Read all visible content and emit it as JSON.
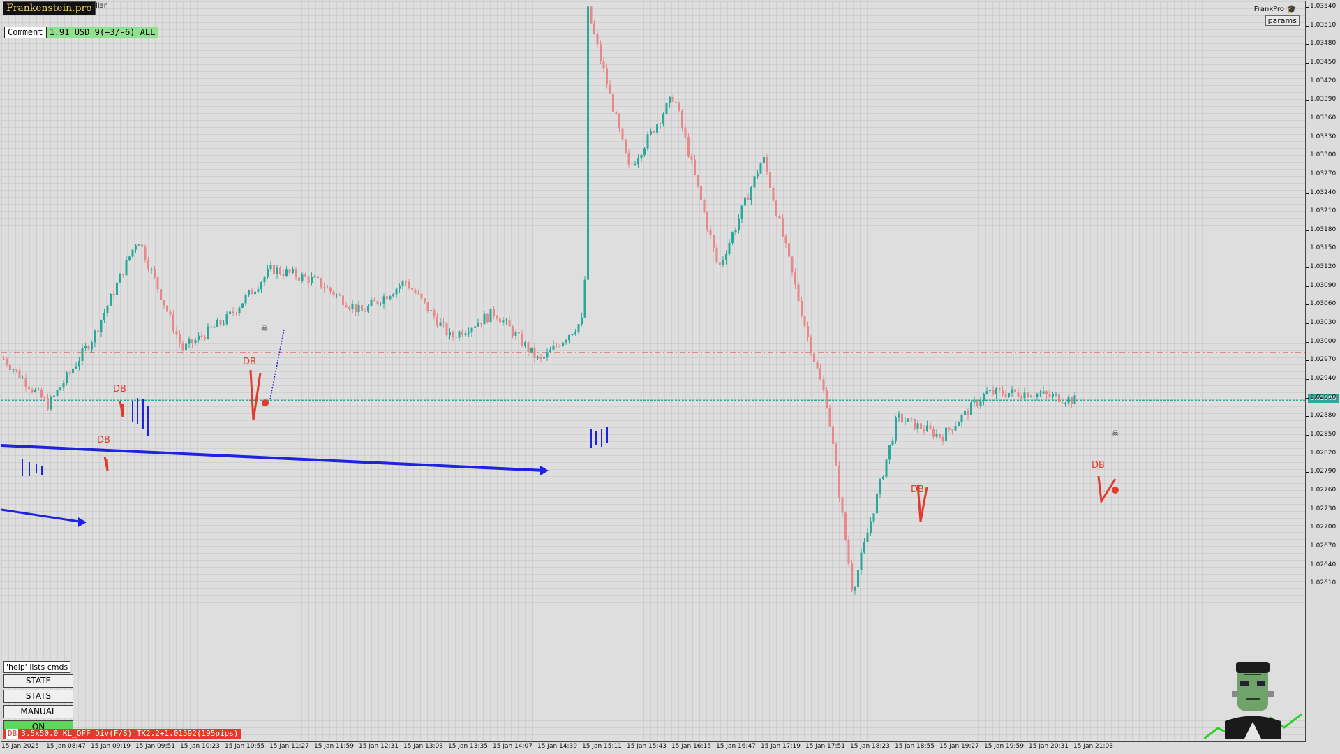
{
  "header": {
    "brand": "Frankenstein.pro",
    "symbol_fragment": "ollar",
    "comment_label": "Comment",
    "comment_value": "1.91 USD 9(+3/-6) ALL",
    "account_name": "FrankPro",
    "params_label": "params"
  },
  "icons": {
    "account": "graduation-cap-icon",
    "mascot": "frankenstein-head-icon",
    "skull": "skull-crossbones-icon"
  },
  "command_panel": {
    "help_label": "'help' lists cmds",
    "buttons": [
      "STATE",
      "STATS",
      "MANUAL",
      "ON"
    ]
  },
  "status_bar": {
    "tag": "DB",
    "text": "3.5x50.0 KL_OFF Div(F/S) TK2.2+1.01592(195pips)"
  },
  "price_axis": {
    "labels": [
      "1.03540",
      "1.03510",
      "1.03480",
      "1.03450",
      "1.03420",
      "1.03390",
      "1.03360",
      "1.03330",
      "1.03300",
      "1.03270",
      "1.03240",
      "1.03210",
      "1.03180",
      "1.03150",
      "1.03120",
      "1.03090",
      "1.03060",
      "1.03030",
      "1.03000",
      "1.02970",
      "1.02940",
      "1.02910",
      "1.02880",
      "1.02850",
      "1.02820",
      "1.02790",
      "1.02760",
      "1.02730",
      "1.02700",
      "1.02670",
      "1.02640",
      "1.02610"
    ],
    "current_price": "1.02908"
  },
  "time_axis": {
    "labels": [
      "15 Jan 2025",
      "15 Jan 08:47",
      "15 Jan 09:19",
      "15 Jan 09:51",
      "15 Jan 10:23",
      "15 Jan 10:55",
      "15 Jan 11:27",
      "15 Jan 11:59",
      "15 Jan 12:31",
      "15 Jan 13:03",
      "15 Jan 13:35",
      "15 Jan 14:07",
      "15 Jan 14:39",
      "15 Jan 15:11",
      "15 Jan 15:43",
      "15 Jan 16:15",
      "15 Jan 16:47",
      "15 Jan 17:19",
      "15 Jan 17:51",
      "15 Jan 18:23",
      "15 Jan 18:55",
      "15 Jan 19:27",
      "15 Jan 19:59",
      "15 Jan 20:31",
      "15 Jan 21:03"
    ]
  },
  "annotations": {
    "db_labels": [
      "DB",
      "DB",
      "DB",
      "DB",
      "DB"
    ],
    "levels": {
      "red_dashed": 1.02985,
      "teal_current": 1.02908
    }
  },
  "colors": {
    "bull": "#2aa89a",
    "bear": "#e8888a",
    "blue_line": "#1f22e0",
    "red_marker": "#e23b2e",
    "current_price_bg": "#2aa89a"
  },
  "chart_data": {
    "type": "candlestick",
    "ylim": [
      1.0259,
      1.0356
    ],
    "path_anchors": [
      {
        "t": "08:15",
        "p": 1.02975
      },
      {
        "t": "08:47",
        "p": 1.029
      },
      {
        "t": "09:19",
        "p": 1.0301
      },
      {
        "t": "09:51",
        "p": 1.0317
      },
      {
        "t": "10:23",
        "p": 1.0299
      },
      {
        "t": "10:55",
        "p": 1.0304
      },
      {
        "t": "11:27",
        "p": 1.0312
      },
      {
        "t": "11:59",
        "p": 1.031
      },
      {
        "t": "12:31",
        "p": 1.0305
      },
      {
        "t": "13:03",
        "p": 1.031
      },
      {
        "t": "13:35",
        "p": 1.0301
      },
      {
        "t": "14:07",
        "p": 1.0305
      },
      {
        "t": "14:39",
        "p": 1.0297
      },
      {
        "t": "15:11",
        "p": 1.0304
      },
      {
        "t": "15:13",
        "p": 1.0354
      },
      {
        "t": "15:43",
        "p": 1.0328
      },
      {
        "t": "16:15",
        "p": 1.034
      },
      {
        "t": "16:47",
        "p": 1.0312
      },
      {
        "t": "17:19",
        "p": 1.033
      },
      {
        "t": "17:51",
        "p": 1.0301
      },
      {
        "t": "18:05",
        "p": 1.029
      },
      {
        "t": "18:23",
        "p": 1.026
      },
      {
        "t": "18:55",
        "p": 1.0288
      },
      {
        "t": "19:27",
        "p": 1.0285
      },
      {
        "t": "19:59",
        "p": 1.0292
      },
      {
        "t": "20:31",
        "p": 1.0292
      },
      {
        "t": "21:03",
        "p": 1.02908
      }
    ]
  }
}
